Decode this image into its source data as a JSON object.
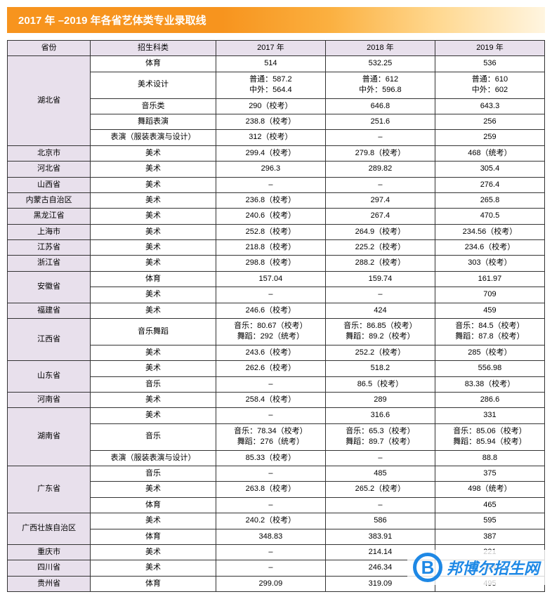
{
  "title": "2017 年 –2019 年各省艺体类专业录取线",
  "headers": [
    "省份",
    "招生科类",
    "2017 年",
    "2018 年",
    "2019 年"
  ],
  "provinces": [
    {
      "name": "湖北省",
      "rows": [
        {
          "cat": "体育",
          "y17": "514",
          "y18": "532.25",
          "y19": "536"
        },
        {
          "cat": "美术设计",
          "y17": "普通：587.2\n中外：564.4",
          "y18": "普通：612\n中外：596.8",
          "y19": "普通：610\n中外：602"
        },
        {
          "cat": "音乐类",
          "y17": "290（校考）",
          "y18": "646.8",
          "y19": "643.3"
        },
        {
          "cat": "舞蹈表演",
          "y17": "238.8（校考）",
          "y18": "251.6",
          "y19": "256"
        },
        {
          "cat": "表演（服装表演与设计）",
          "y17": "312（校考）",
          "y18": "–",
          "y19": "259"
        }
      ]
    },
    {
      "name": "北京市",
      "rows": [
        {
          "cat": "美术",
          "y17": "299.4（校考）",
          "y18": "279.8（校考）",
          "y19": "468（统考）"
        }
      ]
    },
    {
      "name": "河北省",
      "rows": [
        {
          "cat": "美术",
          "y17": "296.3",
          "y18": "289.82",
          "y19": "305.4"
        }
      ]
    },
    {
      "name": "山西省",
      "rows": [
        {
          "cat": "美术",
          "y17": "–",
          "y18": "–",
          "y19": "276.4"
        }
      ]
    },
    {
      "name": "内蒙古自治区",
      "rows": [
        {
          "cat": "美术",
          "y17": "236.8（校考）",
          "y18": "297.4",
          "y19": "265.8"
        }
      ]
    },
    {
      "name": "黑龙江省",
      "rows": [
        {
          "cat": "美术",
          "y17": "240.6（校考）",
          "y18": "267.4",
          "y19": "470.5"
        }
      ]
    },
    {
      "name": "上海市",
      "rows": [
        {
          "cat": "美术",
          "y17": "252.8（校考）",
          "y18": "264.9（校考）",
          "y19": "234.56（校考）"
        }
      ]
    },
    {
      "name": "江苏省",
      "rows": [
        {
          "cat": "美术",
          "y17": "218.8（校考）",
          "y18": "225.2（校考）",
          "y19": "234.6（校考）"
        }
      ]
    },
    {
      "name": "浙江省",
      "rows": [
        {
          "cat": "美术",
          "y17": "298.8（校考）",
          "y18": "288.2（校考）",
          "y19": "303（校考）"
        }
      ]
    },
    {
      "name": "安徽省",
      "rows": [
        {
          "cat": "体育",
          "y17": "157.04",
          "y18": "159.74",
          "y19": "161.97"
        },
        {
          "cat": "美术",
          "y17": "–",
          "y18": "–",
          "y19": "709"
        }
      ]
    },
    {
      "name": "福建省",
      "rows": [
        {
          "cat": "美术",
          "y17": "246.6（校考）",
          "y18": "424",
          "y19": "459"
        }
      ]
    },
    {
      "name": "江西省",
      "rows": [
        {
          "cat": "音乐舞蹈",
          "y17": "音乐：80.67（校考）\n舞蹈：292（统考）",
          "y18": "音乐：86.85（校考）\n舞蹈：89.2（校考）",
          "y19": "音乐：84.5（校考）\n舞蹈：87.8（校考）"
        },
        {
          "cat": "美术",
          "y17": "243.6（校考）",
          "y18": "252.2（校考）",
          "y19": "285（校考）"
        }
      ]
    },
    {
      "name": "山东省",
      "rows": [
        {
          "cat": "美术",
          "y17": "262.6（校考）",
          "y18": "518.2",
          "y19": "556.98"
        },
        {
          "cat": "音乐",
          "y17": "–",
          "y18": "86.5（校考）",
          "y19": "83.38（校考）"
        }
      ]
    },
    {
      "name": "河南省",
      "rows": [
        {
          "cat": "美术",
          "y17": "258.4（校考）",
          "y18": "289",
          "y19": "286.6"
        }
      ]
    },
    {
      "name": "湖南省",
      "rows": [
        {
          "cat": "美术",
          "y17": "–",
          "y18": "316.6",
          "y19": "331"
        },
        {
          "cat": "音乐",
          "y17": "音乐：78.34（校考）\n舞蹈：276（统考）",
          "y18": "音乐：65.3（校考）\n舞蹈：89.7（校考）",
          "y19": "音乐：85.06（校考）\n舞蹈：85.94（校考）"
        },
        {
          "cat": "表演（服装表演与设计）",
          "y17": "85.33（校考）",
          "y18": "–",
          "y19": "88.8"
        }
      ]
    },
    {
      "name": "广东省",
      "rows": [
        {
          "cat": "音乐",
          "y17": "–",
          "y18": "485",
          "y19": "375"
        },
        {
          "cat": "美术",
          "y17": "263.8（校考）",
          "y18": "265.2（校考）",
          "y19": "498（统考）"
        },
        {
          "cat": "体育",
          "y17": "–",
          "y18": "–",
          "y19": "465"
        }
      ]
    },
    {
      "name": "广西壮族自治区",
      "rows": [
        {
          "cat": "美术",
          "y17": "240.2（校考）",
          "y18": "586",
          "y19": "595"
        },
        {
          "cat": "体育",
          "y17": "348.83",
          "y18": "383.91",
          "y19": "387"
        }
      ]
    },
    {
      "name": "重庆市",
      "rows": [
        {
          "cat": "美术",
          "y17": "–",
          "y18": "214.14",
          "y19": "221"
        }
      ]
    },
    {
      "name": "四川省",
      "rows": [
        {
          "cat": "美术",
          "y17": "–",
          "y18": "246.34",
          "y19": "254"
        }
      ]
    },
    {
      "name": "贵州省",
      "rows": [
        {
          "cat": "体育",
          "y17": "299.09",
          "y18": "319.09",
          "y19": "495"
        }
      ]
    }
  ],
  "table_styling": {
    "header_bg": "#e8e0ec",
    "province_bg": "#e8e0ec",
    "border_color": "#333333",
    "font_size": 11
  },
  "watermark": {
    "icon_letter": "B",
    "text": "邦博尔招生网",
    "color": "#1e88e5"
  }
}
